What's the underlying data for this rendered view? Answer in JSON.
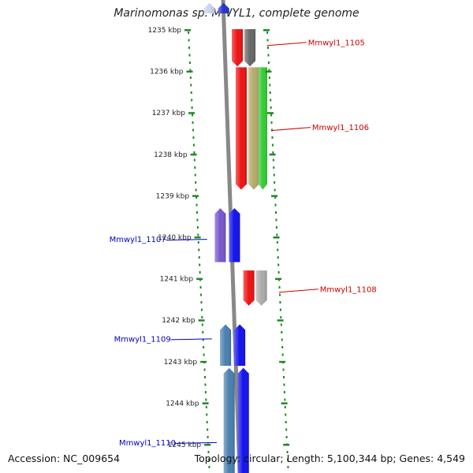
{
  "title": "Marinomonas sp. MWYL1, complete genome",
  "footer": {
    "accession": "Accession: NC_009654",
    "topology": "Topology: circular; Length: 5,100,344 bp; Genes: 4,549"
  },
  "ticks": [
    {
      "label": "1235 kbp",
      "kbp": 1235
    },
    {
      "label": "1236 kbp",
      "kbp": 1236
    },
    {
      "label": "1237 kbp",
      "kbp": 1237
    },
    {
      "label": "1238 kbp",
      "kbp": 1238
    },
    {
      "label": "1239 kbp",
      "kbp": 1239
    },
    {
      "label": "1240 kbp",
      "kbp": 1240
    },
    {
      "label": "1241 kbp",
      "kbp": 1241
    },
    {
      "label": "1242 kbp",
      "kbp": 1242
    },
    {
      "label": "1243 kbp",
      "kbp": 1243
    },
    {
      "label": "1244 kbp",
      "kbp": 1244
    },
    {
      "label": "1245 kbp",
      "kbp": 1245
    }
  ],
  "gene_labels": [
    {
      "label": "Mmwyl1_1105",
      "kbp": 1235.3,
      "side": "right",
      "color": "#cc0000"
    },
    {
      "label": "Mmwyl1_1106",
      "kbp": 1237.35,
      "side": "right",
      "color": "#cc0000"
    },
    {
      "label": "Mmwyl1_1107",
      "kbp": 1240.05,
      "side": "left",
      "color": "#0000cc"
    },
    {
      "label": "Mmwyl1_1108",
      "kbp": 1241.25,
      "side": "right",
      "color": "#cc0000"
    },
    {
      "label": "Mmwyl1_1109",
      "kbp": 1242.45,
      "side": "left",
      "color": "#0000cc"
    },
    {
      "label": "Mmwyl1_1110",
      "kbp": 1244.95,
      "side": "left",
      "color": "#0000cc"
    }
  ],
  "genes": [
    {
      "strand": "rev",
      "start": 1234.35,
      "end": 1234.6,
      "color": "#c9d3ee",
      "lane": 0
    },
    {
      "strand": "rev",
      "start": 1234.35,
      "end": 1234.6,
      "color": "#2233cc",
      "lane": 1
    },
    {
      "strand": "fwd",
      "start": 1234.98,
      "end": 1235.88,
      "color": "#ee1111",
      "lane": 2
    },
    {
      "strand": "fwd",
      "start": 1234.98,
      "end": 1235.88,
      "color": "#666666",
      "lane": 3
    },
    {
      "strand": "fwd",
      "start": 1235.9,
      "end": 1238.85,
      "color": "#ee1111",
      "lane": 2
    },
    {
      "strand": "fwd",
      "start": 1235.9,
      "end": 1238.85,
      "color": "#b3a96a",
      "lane": 3
    },
    {
      "strand": "fwd",
      "start": 1235.9,
      "end": 1238.85,
      "color": "#33cc33",
      "lane": 4
    },
    {
      "strand": "rev",
      "start": 1239.3,
      "end": 1240.6,
      "color": "#7755cc",
      "lane": 0
    },
    {
      "strand": "rev",
      "start": 1239.3,
      "end": 1240.6,
      "color": "#1111ee",
      "lane": 1
    },
    {
      "strand": "fwd",
      "start": 1240.8,
      "end": 1241.65,
      "color": "#ee1111",
      "lane": 2
    },
    {
      "strand": "fwd",
      "start": 1240.8,
      "end": 1241.65,
      "color": "#aaaaaa",
      "lane": 3
    },
    {
      "strand": "rev",
      "start": 1242.1,
      "end": 1243.1,
      "color": "#4a7fb0",
      "lane": 0
    },
    {
      "strand": "rev",
      "start": 1242.1,
      "end": 1243.1,
      "color": "#1111ee",
      "lane": 1
    },
    {
      "strand": "rev",
      "start": 1243.15,
      "end": 1245.8,
      "color": "#4a7fb0",
      "lane": 0
    },
    {
      "strand": "rev",
      "start": 1243.15,
      "end": 1245.8,
      "color": "#1111ee",
      "lane": 1
    }
  ],
  "colors": {
    "tick": "#228822",
    "backbone": "#888888"
  }
}
